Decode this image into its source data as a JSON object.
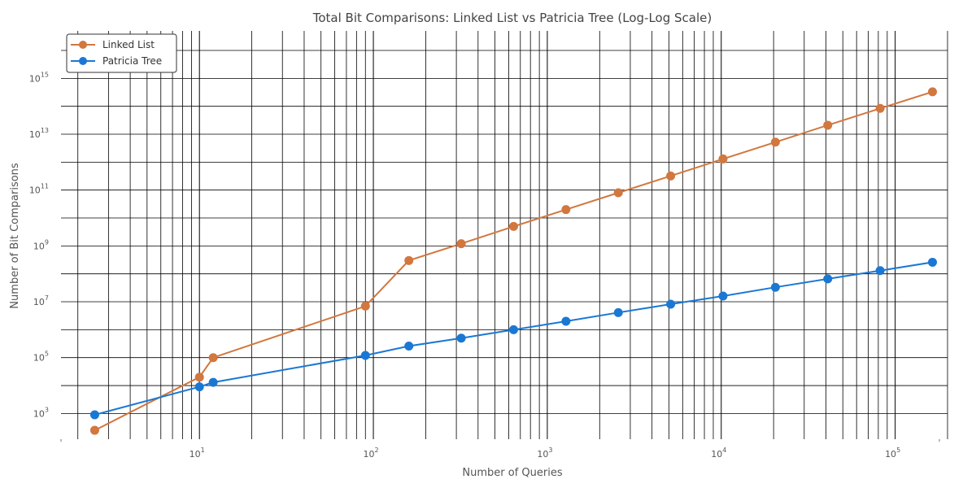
{
  "chart_data": {
    "type": "line",
    "title": "Total Bit Comparisons: Linked List vs Patricia Tree (Log-Log Scale)",
    "xlabel": "Number of Queries",
    "ylabel": "Number of Bit Comparisons",
    "xscale": "log",
    "yscale": "log",
    "xlim": [
      1.6,
      200000
    ],
    "ylim": [
      120,
      50000000000000000
    ],
    "grid": true,
    "legend_position": "top-left",
    "x_ticks": [
      {
        "value": 10,
        "base": "10",
        "exp": "1"
      },
      {
        "value": 100,
        "base": "10",
        "exp": "2"
      },
      {
        "value": 1000,
        "base": "10",
        "exp": "3"
      },
      {
        "value": 10000,
        "base": "10",
        "exp": "4"
      },
      {
        "value": 100000,
        "base": "10",
        "exp": "5"
      }
    ],
    "y_ticks": [
      {
        "value": 1000,
        "base": "10",
        "exp": "3"
      },
      {
        "value": 100000,
        "base": "10",
        "exp": "5"
      },
      {
        "value": 10000000,
        "base": "10",
        "exp": "7"
      },
      {
        "value": 1000000000,
        "base": "10",
        "exp": "9"
      },
      {
        "value": 100000000000,
        "base": "10",
        "exp": "11"
      },
      {
        "value": 10000000000000,
        "base": "10",
        "exp": "13"
      },
      {
        "value": 1000000000000000,
        "base": "10",
        "exp": "15"
      }
    ],
    "series": [
      {
        "name": "Linked List",
        "color": "#d2773e",
        "x": [
          2.5,
          10,
          12,
          90,
          160,
          320,
          640,
          1280,
          2560,
          5120,
          10240,
          20480,
          40960,
          81920,
          163840
        ],
        "y": [
          250,
          20000,
          100000,
          7000000,
          300000000,
          1200000000,
          5000000000,
          20000000000,
          80000000000,
          320000000000,
          1300000000000,
          5200000000000,
          21000000000000,
          84000000000000,
          330000000000000
        ]
      },
      {
        "name": "Patricia Tree",
        "color": "#1a78d4",
        "x": [
          2.5,
          10,
          12,
          90,
          160,
          320,
          640,
          1280,
          2560,
          5120,
          10240,
          20480,
          40960,
          81920,
          163840
        ],
        "y": [
          900,
          9000,
          13000,
          120000,
          260000,
          500000,
          1000000,
          2000000,
          4100000,
          8200000,
          16000000,
          33000000,
          66000000,
          130000000,
          260000000
        ]
      }
    ]
  }
}
